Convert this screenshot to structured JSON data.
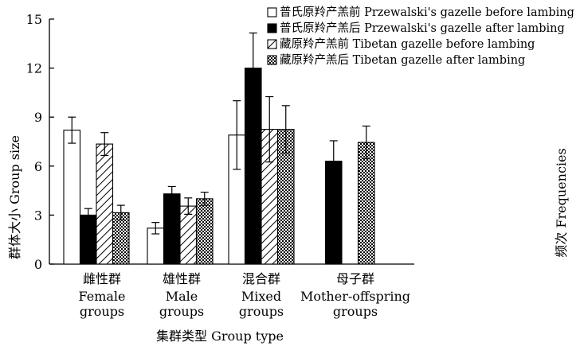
{
  "chart_data": {
    "type": "bar",
    "title": "",
    "xlabel": "集群类型  Group type",
    "ylabel": "群体大小  Group size",
    "right_label": "频次  Frequencies",
    "ylim": [
      0,
      15
    ],
    "yticks": [
      0,
      3,
      6,
      9,
      12,
      15
    ],
    "grid": false,
    "legend_position": "top-right",
    "categories": [
      {
        "cn": "雌性群",
        "en": [
          "Female",
          "groups"
        ]
      },
      {
        "cn": "雄性群",
        "en": [
          "Male",
          "groups"
        ]
      },
      {
        "cn": "混合群",
        "en": [
          "Mixed",
          "groups"
        ]
      },
      {
        "cn": "母子群",
        "en": [
          "Mother-offspring",
          "groups"
        ]
      }
    ],
    "series": [
      {
        "name": "普氏原羚产羔前 Przewalski's gazelle before lambing",
        "pattern": "open",
        "values": [
          8.2,
          null,
          7.9,
          null
        ],
        "errors": [
          0.8,
          null,
          2.1,
          null
        ]
      },
      {
        "name": "普氏原羚产羔后 Przewalski's gazelle after lambing",
        "pattern": "solid",
        "values": [
          3.0,
          4.3,
          12.0,
          6.3
        ],
        "errors": [
          0.4,
          0.45,
          2.15,
          1.25
        ]
      },
      {
        "name": "藏原羚产羔前 Tibetan gazelle before lambing",
        "pattern": "hatch",
        "values": [
          7.35,
          3.55,
          8.25,
          null
        ],
        "errors": [
          0.7,
          0.5,
          2.0,
          null
        ]
      },
      {
        "name": "藏原羚产羔后 Tibetan gazelle after lambing",
        "pattern": "dots",
        "values": [
          3.15,
          4.0,
          8.25,
          7.45
        ],
        "errors": [
          0.45,
          0.4,
          1.45,
          1.0
        ]
      }
    ],
    "extra_bars": [
      {
        "category_index": 1,
        "series_index": 0,
        "value": 2.2,
        "error": 0.35
      }
    ]
  }
}
